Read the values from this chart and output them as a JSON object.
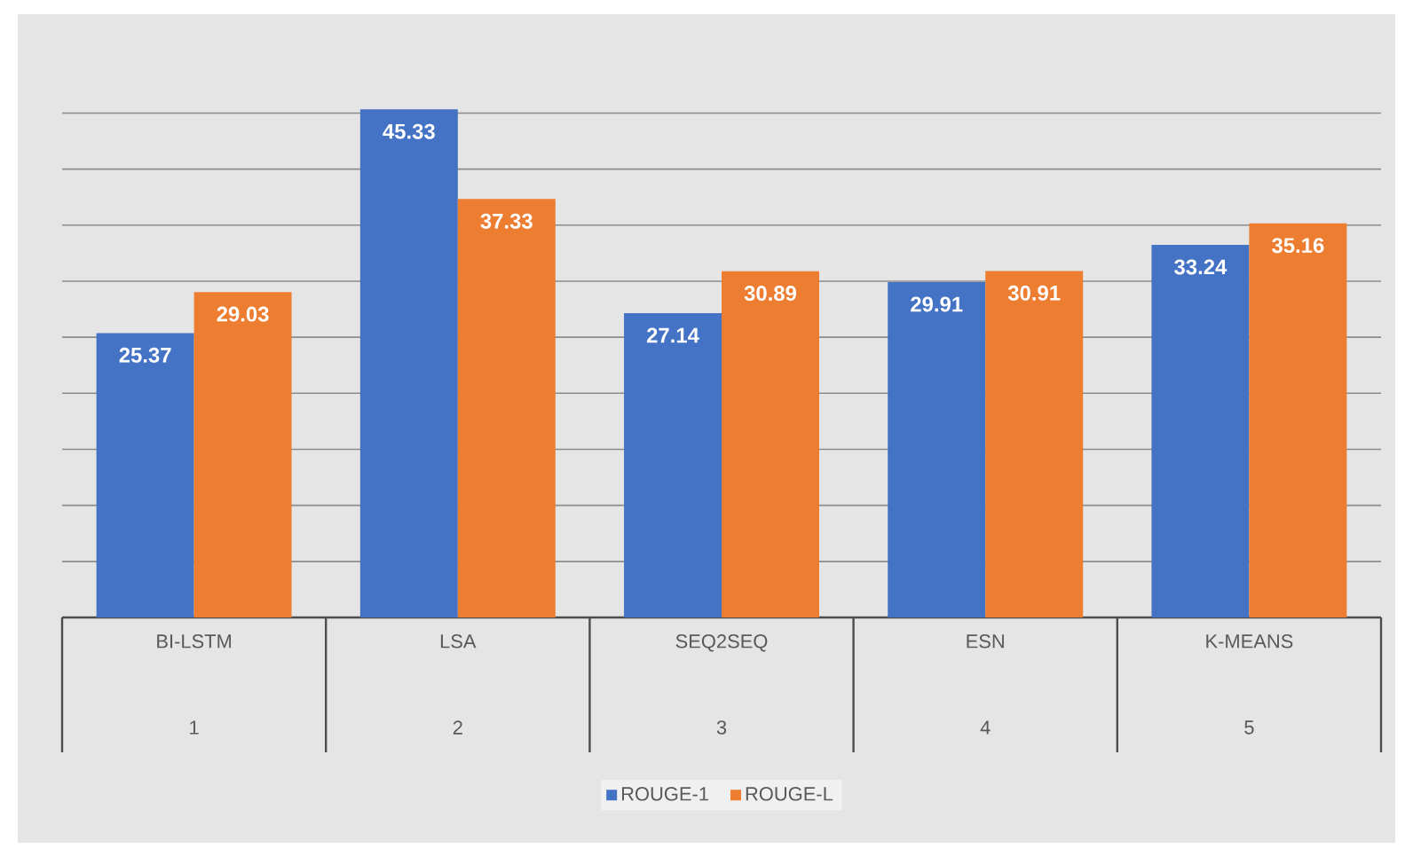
{
  "chart_data": {
    "type": "bar",
    "categories": [
      "BI-LSTM",
      "LSA",
      "SEQ2SEQ",
      "ESN",
      "K-MEANS"
    ],
    "series": [
      {
        "name": "ROUGE-1",
        "color": "#4472c4",
        "values": [
          25.37,
          45.33,
          27.14,
          29.91,
          33.24
        ]
      },
      {
        "name": "ROUGE-L",
        "color": "#ed7d31",
        "values": [
          29.03,
          37.33,
          30.89,
          30.91,
          35.16
        ]
      }
    ],
    "annotations": [
      "1",
      "2",
      "3",
      "4",
      "5"
    ],
    "tick_labels": "x",
    "grid": "y",
    "legend": "bottom",
    "data_labels": true
  }
}
